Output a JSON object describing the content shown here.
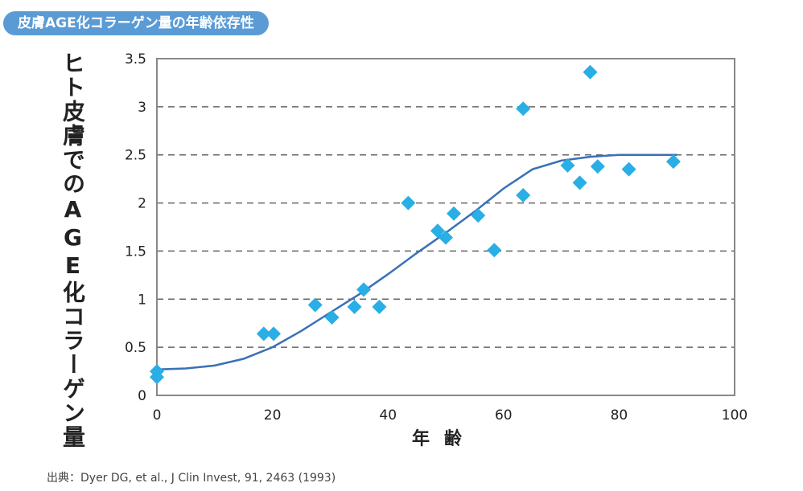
{
  "header": {
    "title": "皮膚AGE化コラーゲン量の年齢依存性"
  },
  "source": "出典：Dyer DG, et al., J Clin Invest, 91, 2463 (1993)",
  "colors": {
    "title_bg": "#5b9bd5",
    "points": "#29aee6",
    "curve": "#3a70b8",
    "grid": "#666666",
    "frame": "#888888"
  },
  "chart_data": {
    "type": "scatter",
    "xlabel": "年齢",
    "ylabel": "ヒト皮膚でのAGE化コラーゲン量",
    "xlim": [
      0,
      100
    ],
    "ylim": [
      0,
      3.5
    ],
    "x_ticks": [
      0,
      20,
      40,
      60,
      80,
      100
    ],
    "y_ticks": [
      0,
      0.5,
      1,
      1.5,
      2,
      2.5,
      3,
      3.5
    ],
    "x_tick_labels": [
      "0",
      "20",
      "40",
      "60",
      "80",
      "100"
    ],
    "y_tick_labels": [
      "0",
      "0.5",
      "1",
      "1.5",
      "2",
      "2.5",
      "3",
      "3.5"
    ],
    "grid": "horizontal dashed",
    "points": [
      {
        "x": 0,
        "y": 0.25
      },
      {
        "x": 0,
        "y": 0.19
      },
      {
        "x": 18.5,
        "y": 0.64
      },
      {
        "x": 20.2,
        "y": 0.64
      },
      {
        "x": 27.4,
        "y": 0.94
      },
      {
        "x": 30.3,
        "y": 0.81
      },
      {
        "x": 34.2,
        "y": 0.92
      },
      {
        "x": 35.8,
        "y": 1.1
      },
      {
        "x": 38.5,
        "y": 0.92
      },
      {
        "x": 43.5,
        "y": 2.0
      },
      {
        "x": 48.6,
        "y": 1.71
      },
      {
        "x": 50.0,
        "y": 1.64
      },
      {
        "x": 51.4,
        "y": 1.89
      },
      {
        "x": 55.6,
        "y": 1.87
      },
      {
        "x": 58.4,
        "y": 1.51
      },
      {
        "x": 63.4,
        "y": 2.98
      },
      {
        "x": 63.4,
        "y": 2.08
      },
      {
        "x": 71.1,
        "y": 2.39
      },
      {
        "x": 73.2,
        "y": 2.21
      },
      {
        "x": 75.0,
        "y": 3.36
      },
      {
        "x": 76.3,
        "y": 2.38
      },
      {
        "x": 81.7,
        "y": 2.35
      },
      {
        "x": 89.4,
        "y": 2.43
      }
    ],
    "trend_line": [
      {
        "x": 0,
        "y": 0.27
      },
      {
        "x": 5,
        "y": 0.28
      },
      {
        "x": 10,
        "y": 0.31
      },
      {
        "x": 15,
        "y": 0.38
      },
      {
        "x": 20,
        "y": 0.5
      },
      {
        "x": 25,
        "y": 0.67
      },
      {
        "x": 30,
        "y": 0.86
      },
      {
        "x": 35,
        "y": 1.05
      },
      {
        "x": 40,
        "y": 1.26
      },
      {
        "x": 45,
        "y": 1.48
      },
      {
        "x": 50,
        "y": 1.69
      },
      {
        "x": 55,
        "y": 1.91
      },
      {
        "x": 60,
        "y": 2.15
      },
      {
        "x": 65,
        "y": 2.35
      },
      {
        "x": 70,
        "y": 2.44
      },
      {
        "x": 75,
        "y": 2.48
      },
      {
        "x": 80,
        "y": 2.5
      },
      {
        "x": 85,
        "y": 2.5
      },
      {
        "x": 90,
        "y": 2.5
      }
    ]
  }
}
